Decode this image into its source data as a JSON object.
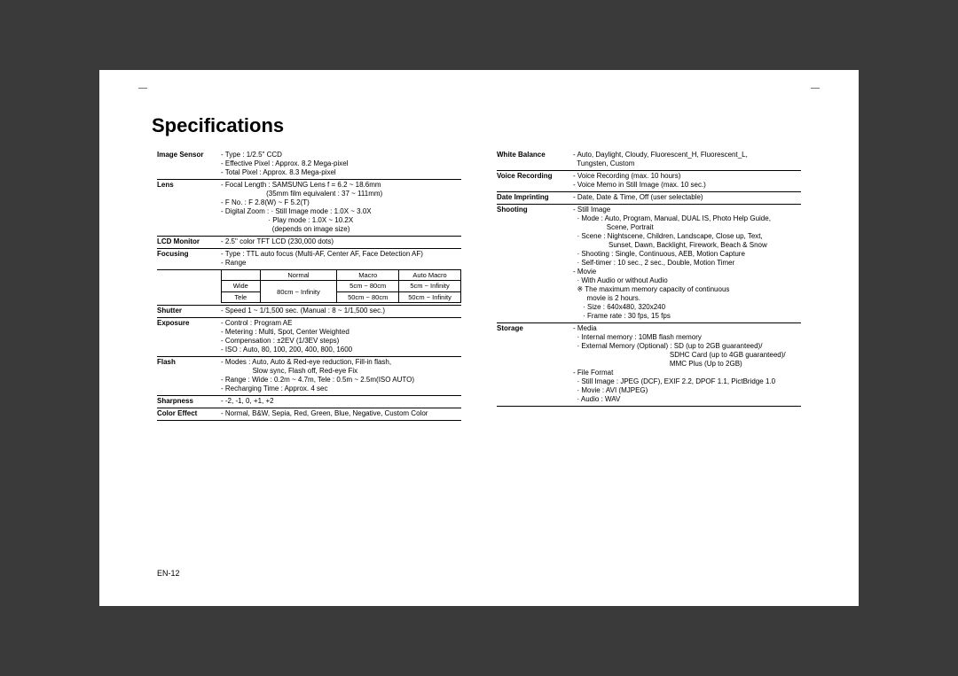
{
  "title": "Specifications",
  "footer": "EN-12",
  "left": [
    {
      "label": "Image Sensor",
      "lines": [
        "- Type : 1/2.5\" CCD",
        "- Effective Pixel : Approx. 8.2 Mega-pixel",
        "- Total Pixel : Approx. 8.3 Mega-pixel"
      ]
    },
    {
      "label": "Lens",
      "lines": [
        "- Focal Length : SAMSUNG Lens f = 6.2 ~ 18.6mm",
        "                       (35mm film equivalent : 37 ~ 111mm)",
        "- F No. : F 2.8(W) ~ F 5.2(T)",
        "- Digital Zoom : · Still Image mode : 1.0X ~ 3.0X",
        "                        · Play mode : 1.0X ~ 10.2X",
        "                          (depends on image size)"
      ]
    },
    {
      "label": "LCD Monitor",
      "lines": [
        "- 2.5\" color TFT LCD (230,000 dots)"
      ]
    },
    {
      "label": "Focusing",
      "lines": [
        "- Type : TTL auto focus (Multi-AF, Center AF, Face Detection AF)",
        "- Range"
      ],
      "table": {
        "header": [
          "",
          "Normal",
          "Macro",
          "Auto Macro"
        ],
        "rows": [
          [
            "Wide",
            "",
            "5cm ~ 80cm",
            "5cm ~ Infinity"
          ],
          [
            "Tele",
            "",
            "50cm ~  80cm",
            "50cm ~ Infinity"
          ]
        ],
        "merge_col1": "80cm ~ Infinity"
      }
    },
    {
      "label": "Shutter",
      "lines": [
        "- Speed 1 ~ 1/1,500 sec. (Manual : 8 ~ 1/1,500 sec.)"
      ]
    },
    {
      "label": "Exposure",
      "lines": [
        "- Control : Program AE",
        "- Metering : Multi, Spot, Center Weighted",
        "- Compensation : ±2EV (1/3EV steps)",
        "- ISO : Auto, 80, 100, 200, 400, 800, 1600"
      ]
    },
    {
      "label": "Flash",
      "lines": [
        "- Modes : Auto, Auto & Red-eye reduction, Fill-in flash,",
        "                Slow sync, Flash off, Red-eye Fix",
        "- Range : Wide : 0.2m ~ 4.7m, Tele : 0.5m ~ 2.5m(ISO AUTO)",
        "- Recharging Time : Approx. 4 sec"
      ]
    },
    {
      "label": "Sharpness",
      "lines": [
        "- -2, -1, 0, +1, +2"
      ]
    },
    {
      "label": "Color Effect",
      "lines": [
        "- Normal, B&W, Sepia, Red, Green, Blue, Negative, Custom Color"
      ]
    }
  ],
  "right": [
    {
      "label": "White Balance",
      "lines": [
        "- Auto, Daylight, Cloudy, Fluorescent_H, Fluorescent_L,",
        "  Tungsten, Custom"
      ]
    },
    {
      "label": "Voice Recording",
      "lines": [
        "- Voice Recording (max. 10 hours)",
        "- Voice Memo in Still Image (max. 10 sec.)"
      ]
    },
    {
      "label": "Date Imprinting",
      "lines": [
        "- Date, Date & Time, Off (user selectable)"
      ]
    },
    {
      "label": "Shooting",
      "lines": [
        "- Still Image",
        "  · Mode : Auto, Program, Manual, DUAL IS, Photo Help Guide,",
        "                 Scene, Portrait",
        "  · Scene : Nightscene, Children, Landscape, Close up, Text,",
        "                  Sunset, Dawn, Backlight, Firework, Beach & Snow",
        "  · Shooting : Single, Continuous, AEB, Motion Capture",
        "  · Self-timer : 10 sec., 2 sec., Double, Motion Timer",
        "",
        "- Movie",
        "  · With Audio or without Audio",
        "  ※ The maximum memory capacity of continuous",
        "       movie is 2 hours.",
        "     · Size : 640x480, 320x240",
        "     · Frame rate : 30 fps, 15 fps"
      ]
    },
    {
      "label": "Storage",
      "lines": [
        "- Media",
        "  · Internal memory : 10MB flash memory",
        "  · External Memory (Optional) : SD (up to 2GB guaranteed)/",
        "                                                 SDHC Card (up to 4GB guaranteed)/",
        "                                                 MMC Plus (Up to 2GB)",
        "- File Format",
        "  · Still Image : JPEG (DCF), EXIF 2.2, DPOF 1.1, PictBridge 1.0",
        "  · Movie : AVI (MJPEG)",
        "  · Audio : WAV"
      ]
    }
  ]
}
